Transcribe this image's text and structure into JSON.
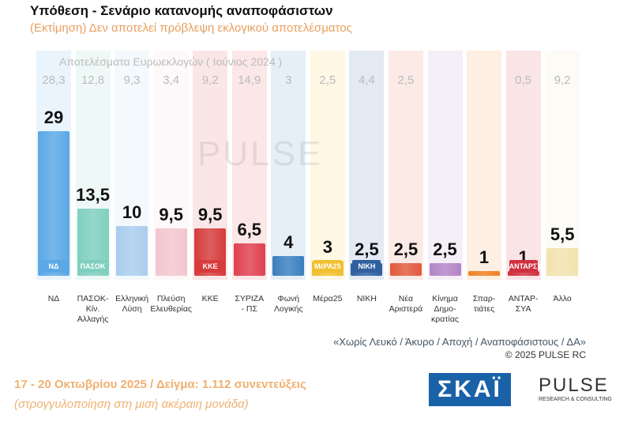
{
  "header": {
    "title": "Υπόθεση - Σενάριο κατανομής αναποφάσιστων",
    "subtitle": "(Εκτίμηση)   Δεν αποτελεί πρόβλεψη εκλογικού αποτελέσματος"
  },
  "chart_data": {
    "type": "bar",
    "title": "Υπόθεση - Σενάριο κατανομής αναποφάσιστων",
    "previous_label": "Αποτελέσματα Ευρωεκλογών  ( Ιούνιος 2024 )",
    "categories": [
      "ΝΔ",
      "ΠΑΣΟΚ-Κίν.\nΑλλαγής",
      "Ελληνική\nΛύση",
      "Πλεύση\nΕλευθερίας",
      "ΚΚΕ",
      "ΣΥΡΙΖΑ\n- ΠΣ",
      "Φωνή\nΛογικής",
      "Μέρα25",
      "ΝΙΚΗ",
      "Νέα\nΑριστερά",
      "Κίνημα\nΔημο-\nκρατίας",
      "Σπαρ-\nτιάτες",
      "ΑΝΤΑΡ-\nΣΥΑ",
      "Άλλο"
    ],
    "values": [
      "29",
      "13,5",
      "10",
      "9,5",
      "9,5",
      "6,5",
      "4",
      "3",
      "2,5",
      "2,5",
      "2,5",
      "1",
      "1",
      "5,5"
    ],
    "previous": [
      "28,3",
      "12,8",
      "9,3",
      "3,4",
      "9,2",
      "14,9",
      "3",
      "2,5",
      "4,4",
      "2,5",
      "",
      "",
      "0,5",
      "9,2"
    ],
    "logos": [
      "ΝΔ",
      "ΠΑΣΟΚ",
      "",
      "",
      "ΚΚΕ",
      "",
      "",
      "ΜέΡΑ25",
      "ΝΙΚΗ",
      "",
      "",
      "",
      "ΑΝΤΑΡΣΥΑ",
      ""
    ],
    "colors": [
      "#5aa8e6",
      "#7fcfbf",
      "#a9cdee",
      "#f3c6cf",
      "#d63c3c",
      "#e0404f",
      "#3a7fbf",
      "#f2bf30",
      "#2f5f9f",
      "#e05a3c",
      "#b383c6",
      "#f08020",
      "#d03040",
      "#f2e2ae"
    ],
    "ylim": [
      0,
      30
    ]
  },
  "footer": {
    "note": "«Χωρίς Λευκό / Άκυρο / Αποχή / Αναποφάσιστους / ΔΑ»",
    "copyright": "©  2025  PULSE RC",
    "dates": "17 - 20 Οκτωβρίου 2025  /  Δείγμα:  1.112 συνεντεύξεις",
    "rounding": "(στρογγυλοποίηση στη μισή ακέραιη μονάδα)"
  },
  "logos": {
    "skai": "ΣΚΑΪ",
    "pulse": "PULSE",
    "pulse_sub": "RESEARCH & CONSULTING"
  }
}
